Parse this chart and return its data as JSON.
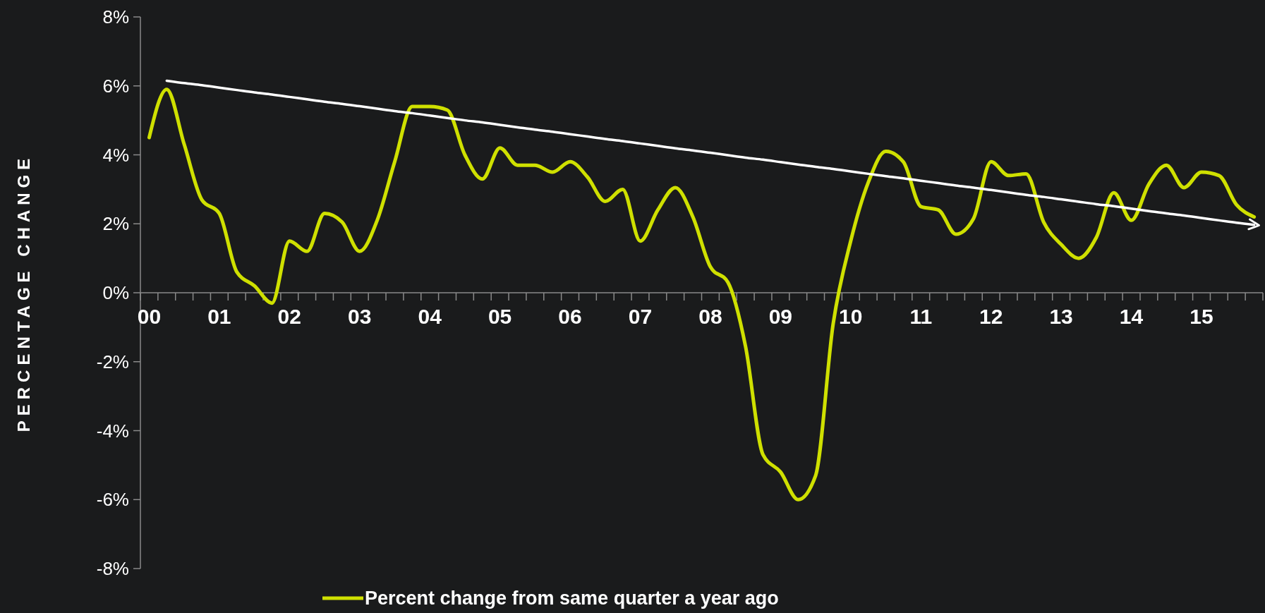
{
  "chart_data": {
    "type": "line",
    "ylabel": "PERCENTAGE CHANGE",
    "ylim": [
      -8,
      8
    ],
    "yticks": [
      {
        "value": -8,
        "label": "-8%"
      },
      {
        "value": -6,
        "label": "-6%"
      },
      {
        "value": -4,
        "label": "-4%"
      },
      {
        "value": -2,
        "label": "-2%"
      },
      {
        "value": 0,
        "label": "0%"
      },
      {
        "value": 2,
        "label": "2%"
      },
      {
        "value": 4,
        "label": "4%"
      },
      {
        "value": 6,
        "label": "6%"
      },
      {
        "value": 8,
        "label": "8%"
      }
    ],
    "categories": [
      "00",
      null,
      null,
      null,
      "01",
      null,
      null,
      null,
      "02",
      null,
      null,
      null,
      "03",
      null,
      null,
      null,
      "04",
      null,
      null,
      null,
      "05",
      null,
      null,
      null,
      "06",
      null,
      null,
      null,
      "07",
      null,
      null,
      null,
      "08",
      null,
      null,
      null,
      "09",
      null,
      null,
      null,
      "10",
      null,
      null,
      null,
      "11",
      null,
      null,
      null,
      "12",
      null,
      null,
      null,
      "13",
      null,
      null,
      null,
      "14",
      null,
      null,
      null,
      "15",
      null,
      null,
      null
    ],
    "grid": false,
    "legend": "bottom",
    "line_style": "solid",
    "marker": "none",
    "series": [
      {
        "name": "Percent change from same quarter a year ago",
        "color": "#cfe000",
        "values": [
          4.5,
          5.9,
          4.3,
          2.7,
          2.3,
          0.6,
          0.2,
          -0.3,
          1.5,
          1.2,
          2.3,
          2.05,
          1.2,
          2.1,
          3.8,
          5.4,
          5.4,
          5.3,
          4.0,
          3.3,
          4.2,
          3.7,
          3.7,
          3.5,
          3.8,
          3.35,
          2.65,
          3.0,
          1.5,
          2.4,
          3.05,
          2.2,
          0.75,
          0.3,
          -1.55,
          -4.7,
          -5.2,
          -6.0,
          -5.3,
          -0.9,
          1.5,
          3.2,
          4.1,
          3.8,
          2.5,
          2.4,
          1.7,
          2.15,
          3.8,
          3.4,
          3.45,
          2.05,
          1.4,
          1.0,
          1.6,
          2.9,
          2.1,
          3.15,
          3.7,
          3.05,
          3.5,
          3.4,
          2.55,
          2.2
        ]
      },
      {
        "type": "line",
        "color": "#ffffff",
        "values": [
          null,
          6.15,
          6.08,
          6.02,
          5.95,
          5.88,
          5.81,
          5.75,
          5.68,
          5.61,
          5.54,
          5.48,
          5.41,
          5.34,
          5.27,
          5.21,
          5.14,
          5.07,
          5.0,
          4.94,
          4.87,
          4.8,
          4.73,
          4.67,
          4.6,
          4.53,
          4.46,
          4.4,
          4.33,
          4.26,
          4.19,
          4.13,
          4.06,
          3.99,
          3.92,
          3.86,
          3.79,
          3.72,
          3.65,
          3.59,
          3.52,
          3.45,
          3.38,
          3.32,
          3.25,
          3.18,
          3.11,
          3.05,
          2.98,
          2.91,
          2.84,
          2.78,
          2.71,
          2.64,
          2.57,
          2.51,
          2.44,
          2.37,
          2.3,
          2.24,
          2.17,
          2.1,
          2.03,
          1.97
        ]
      }
    ]
  }
}
